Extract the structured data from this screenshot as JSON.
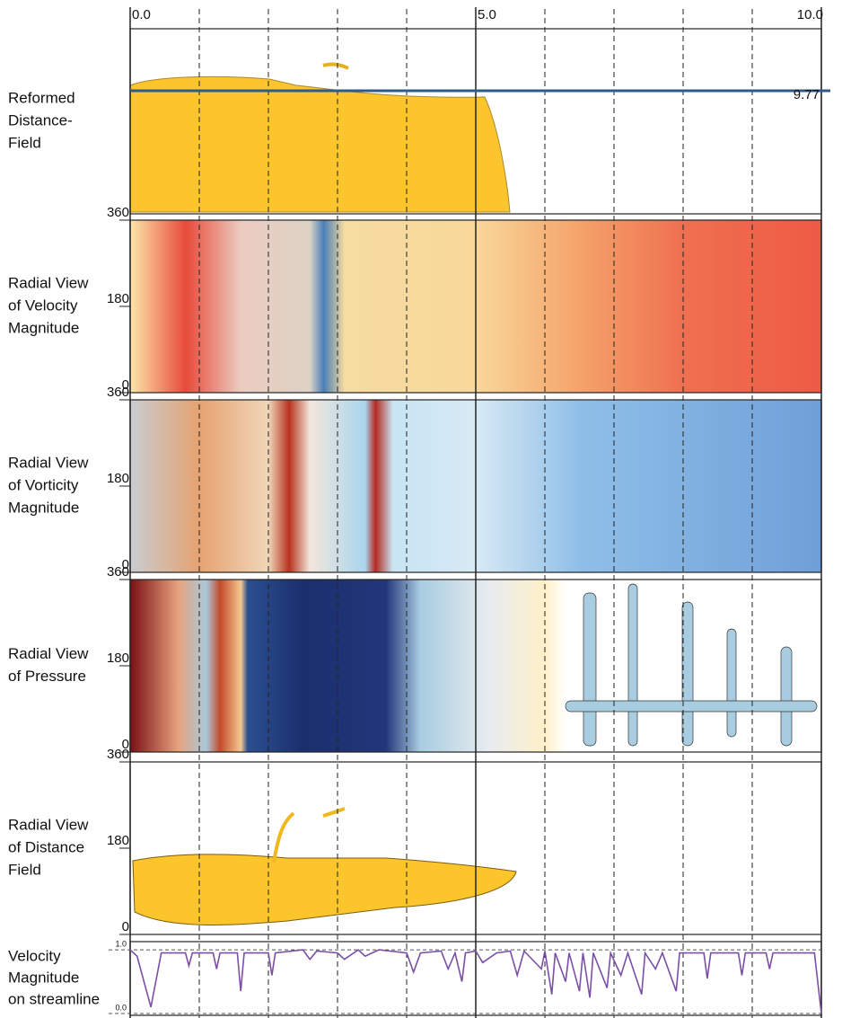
{
  "x_axis": {
    "xlim": [
      0,
      10
    ],
    "xticks": [
      {
        "value": 0,
        "label": "0.0"
      },
      {
        "value": 5,
        "label": "5.0"
      },
      {
        "value": 10,
        "label": "10.0"
      }
    ],
    "grid": [
      1,
      2,
      3,
      4,
      5,
      6,
      7,
      8,
      9
    ]
  },
  "threshold": 9.77,
  "panels": [
    {
      "label": [
        "Reformed",
        "Distance-",
        "Field"
      ]
    },
    {
      "label": [
        "Radial View",
        "of Velocity",
        "Magnitude"
      ],
      "ylim": [
        0,
        360
      ],
      "yticks": [
        0,
        180,
        360
      ]
    },
    {
      "label": [
        "Radial View",
        "of Vorticity",
        "Magnitude"
      ],
      "ylim": [
        0,
        360
      ],
      "yticks": [
        0,
        180,
        360
      ]
    },
    {
      "label": [
        "Radial View",
        "of Pressure"
      ],
      "ylim": [
        0,
        360
      ],
      "yticks": [
        0,
        180,
        360
      ]
    },
    {
      "label": [
        "Radial View",
        "of Distance",
        "Field"
      ],
      "ylim": [
        0,
        360
      ],
      "yticks": [
        0,
        180,
        360
      ]
    }
  ],
  "chart_data": {
    "type": "line",
    "label": [
      "Velocity",
      "Magnitude",
      "on streamline"
    ],
    "color": "#7b4fa6",
    "ylim": [
      0,
      1.1
    ],
    "yticks": [
      {
        "value": 0,
        "label": "0.0"
      },
      {
        "value": 1,
        "label": "1.0"
      }
    ],
    "x": [
      0,
      0.1,
      0.3,
      0.45,
      0.8,
      0.85,
      0.9,
      1.2,
      1.25,
      1.3,
      1.55,
      1.6,
      1.65,
      2.0,
      2.05,
      2.1,
      2.5,
      2.6,
      2.7,
      3.0,
      3.1,
      3.3,
      3.4,
      3.6,
      4.0,
      4.1,
      4.2,
      4.5,
      4.6,
      4.7,
      4.8,
      4.85,
      5.0,
      5.1,
      5.3,
      5.5,
      5.6,
      5.7,
      5.95,
      6.0,
      6.1,
      6.15,
      6.3,
      6.35,
      6.5,
      6.55,
      6.65,
      6.7,
      6.9,
      6.95,
      7.1,
      7.2,
      7.4,
      7.45,
      7.6,
      7.7,
      7.9,
      7.95,
      8.3,
      8.35,
      8.4,
      8.8,
      8.85,
      8.9,
      9.2,
      9.25,
      9.3,
      9.9,
      10.0
    ],
    "values": [
      1.0,
      0.9,
      0.1,
      0.95,
      0.95,
      0.75,
      0.95,
      0.95,
      0.7,
      0.95,
      0.95,
      0.35,
      0.95,
      0.95,
      0.6,
      0.95,
      1.0,
      0.85,
      0.98,
      0.95,
      0.85,
      1.0,
      0.9,
      1.0,
      0.95,
      0.65,
      0.95,
      0.98,
      0.7,
      0.95,
      0.5,
      0.95,
      0.98,
      0.8,
      0.95,
      0.98,
      0.6,
      0.98,
      0.7,
      0.98,
      0.3,
      0.95,
      0.5,
      0.95,
      0.35,
      0.95,
      0.25,
      0.95,
      0.4,
      0.95,
      0.6,
      0.95,
      0.3,
      0.95,
      0.7,
      0.95,
      0.35,
      0.95,
      0.95,
      0.55,
      0.95,
      0.95,
      0.6,
      0.95,
      0.95,
      0.7,
      0.95,
      0.95,
      0.0
    ]
  }
}
